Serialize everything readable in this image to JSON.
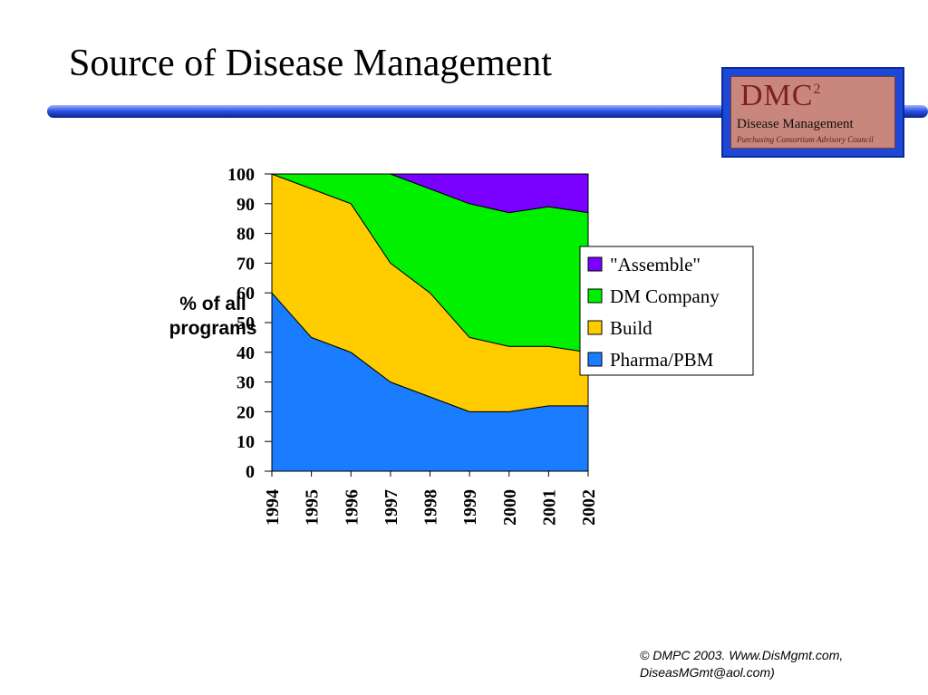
{
  "slide": {
    "title": "Source of Disease Management",
    "footer_line1": "© DMPC 2003.  Www.DisMgmt.com,",
    "footer_line2": "DiseasMGmt@aol.com)"
  },
  "logo": {
    "mark": "DMC",
    "mark_sup": "2",
    "subtitle": "Disease Management",
    "tagline": "Purchasing Consortium    Advisory Council"
  },
  "chart_data": {
    "type": "area",
    "stacked": true,
    "title": "",
    "xlabel": "",
    "ylabel": "% of all programs",
    "ylim": [
      0,
      100
    ],
    "yticks": [
      0,
      10,
      20,
      30,
      40,
      50,
      60,
      70,
      80,
      90,
      100
    ],
    "categories": [
      "1994",
      "1995",
      "1996",
      "1997",
      "1998",
      "1999",
      "2000",
      "2001",
      "2002"
    ],
    "legend_position": "right",
    "grid": false,
    "series": [
      {
        "name": "Pharma/PBM",
        "color": "#1a7cff",
        "values": [
          60,
          45,
          40,
          30,
          25,
          20,
          20,
          22,
          22
        ]
      },
      {
        "name": "Build",
        "color": "#ffcc00",
        "values": [
          40,
          50,
          50,
          40,
          35,
          25,
          22,
          20,
          18
        ]
      },
      {
        "name": "DM Company",
        "color": "#00f000",
        "values": [
          0,
          5,
          10,
          30,
          35,
          45,
          45,
          47,
          47
        ]
      },
      {
        "name": "\"Assemble\"",
        "color": "#7a00ff",
        "values": [
          0,
          0,
          0,
          0,
          5,
          10,
          13,
          11,
          13
        ]
      }
    ],
    "legend_order": [
      "\"Assemble\"",
      "DM Company",
      "Build",
      "Pharma/PBM"
    ]
  }
}
